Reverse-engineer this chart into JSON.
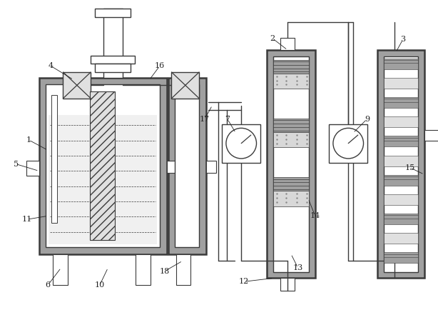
{
  "bg_color": "#ffffff",
  "lc": "#3a3a3a",
  "fill_white": "#ffffff",
  "fill_light": "#e0e0e0",
  "fill_medium": "#a0a0a0",
  "fill_dark": "#606060",
  "fill_dotted": "#d8d8d8",
  "label_color": "#222222"
}
